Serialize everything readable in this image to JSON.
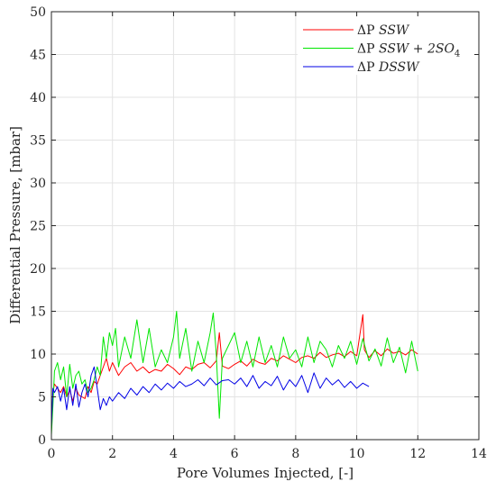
{
  "chart_data": {
    "type": "line",
    "xlabel": "Pore Volumes Injected, [-]",
    "ylabel": "Differential Pressure, [mbar]",
    "xlim": [
      0,
      14
    ],
    "ylim": [
      0,
      50
    ],
    "xticks": [
      0,
      2,
      4,
      6,
      8,
      10,
      12,
      14
    ],
    "yticks": [
      0,
      5,
      10,
      15,
      20,
      25,
      30,
      35,
      40,
      45,
      50
    ],
    "grid": true,
    "legend_position": "top-right",
    "series": [
      {
        "name": "ΔP SSW",
        "legend_prefix": "ΔP",
        "legend_label": "SSW",
        "color": "#ff0000",
        "x": [
          0.0,
          0.05,
          0.1,
          0.2,
          0.3,
          0.4,
          0.5,
          0.6,
          0.7,
          0.8,
          0.9,
          1.0,
          1.1,
          1.2,
          1.3,
          1.4,
          1.5,
          1.6,
          1.7,
          1.8,
          1.9,
          2.0,
          2.2,
          2.4,
          2.6,
          2.8,
          3.0,
          3.2,
          3.4,
          3.6,
          3.8,
          4.0,
          4.2,
          4.4,
          4.6,
          4.8,
          5.0,
          5.2,
          5.4,
          5.5,
          5.6,
          5.8,
          6.0,
          6.2,
          6.4,
          6.6,
          6.8,
          7.0,
          7.2,
          7.4,
          7.6,
          7.8,
          8.0,
          8.2,
          8.4,
          8.6,
          8.8,
          9.0,
          9.2,
          9.4,
          9.6,
          9.8,
          10.0,
          10.2,
          10.25,
          10.3,
          10.4,
          10.6,
          10.8,
          11.0,
          11.2,
          11.4,
          11.6,
          11.8,
          12.0
        ],
        "y": [
          1.0,
          5.5,
          6.5,
          6.0,
          5.5,
          6.2,
          5.0,
          5.8,
          4.5,
          6.0,
          5.2,
          5.0,
          4.8,
          6.2,
          5.5,
          6.8,
          6.5,
          7.5,
          8.5,
          9.5,
          8.0,
          9.0,
          7.5,
          8.5,
          9.0,
          8.0,
          8.5,
          7.8,
          8.2,
          8.0,
          8.8,
          8.3,
          7.6,
          8.5,
          8.2,
          8.8,
          9.0,
          8.4,
          9.2,
          12.5,
          8.6,
          8.3,
          8.8,
          9.2,
          8.6,
          9.4,
          9.0,
          8.8,
          9.5,
          9.2,
          9.8,
          9.4,
          9.0,
          9.6,
          9.8,
          9.5,
          10.2,
          9.6,
          9.9,
          10.1,
          9.7,
          10.3,
          9.8,
          14.6,
          10.5,
          10.2,
          9.6,
          10.4,
          9.8,
          10.6,
          10.1,
          10.3,
          9.9,
          10.5,
          10.0
        ]
      },
      {
        "name": "ΔP SSW + 2SO4",
        "legend_prefix": "ΔP",
        "legend_label": "SSW + 2SO",
        "legend_sub": "4",
        "color": "#00e600",
        "x": [
          0.0,
          0.05,
          0.1,
          0.2,
          0.3,
          0.4,
          0.5,
          0.6,
          0.7,
          0.8,
          0.9,
          1.0,
          1.1,
          1.2,
          1.3,
          1.4,
          1.5,
          1.6,
          1.7,
          1.8,
          1.9,
          2.0,
          2.1,
          2.2,
          2.4,
          2.6,
          2.8,
          3.0,
          3.2,
          3.4,
          3.6,
          3.8,
          4.0,
          4.1,
          4.2,
          4.4,
          4.6,
          4.8,
          5.0,
          5.2,
          5.3,
          5.4,
          5.5,
          5.6,
          5.8,
          6.0,
          6.2,
          6.4,
          6.6,
          6.8,
          7.0,
          7.2,
          7.4,
          7.6,
          7.8,
          8.0,
          8.2,
          8.4,
          8.6,
          8.8,
          9.0,
          9.2,
          9.4,
          9.6,
          9.8,
          10.0,
          10.2,
          10.4,
          10.6,
          10.8,
          11.0,
          11.2,
          11.4,
          11.6,
          11.8,
          12.0
        ],
        "y": [
          0.5,
          4.0,
          8.0,
          9.0,
          7.0,
          8.5,
          5.0,
          8.8,
          6.0,
          7.5,
          8.0,
          6.5,
          7.0,
          5.5,
          6.0,
          7.0,
          8.5,
          7.5,
          12.0,
          9.5,
          12.5,
          11.0,
          13.0,
          8.5,
          12.0,
          9.5,
          14.0,
          9.0,
          13.0,
          8.5,
          10.5,
          9.0,
          12.0,
          15.0,
          9.5,
          13.0,
          8.0,
          11.5,
          9.0,
          12.5,
          14.8,
          10.0,
          2.5,
          9.5,
          11.0,
          12.5,
          9.0,
          11.5,
          8.5,
          12.0,
          9.0,
          11.0,
          8.5,
          12.0,
          9.5,
          10.5,
          8.5,
          12.0,
          9.0,
          11.5,
          10.5,
          8.5,
          11.0,
          9.5,
          11.5,
          8.8,
          11.8,
          9.2,
          10.6,
          8.6,
          11.9,
          9.0,
          10.8,
          7.8,
          11.5,
          8.0
        ]
      },
      {
        "name": "ΔP DSSW",
        "legend_prefix": "ΔP",
        "legend_label": "DSSW",
        "color": "#0000e6",
        "x": [
          0.0,
          0.05,
          0.1,
          0.2,
          0.3,
          0.4,
          0.5,
          0.6,
          0.7,
          0.8,
          0.9,
          1.0,
          1.1,
          1.2,
          1.3,
          1.4,
          1.5,
          1.6,
          1.7,
          1.8,
          1.9,
          2.0,
          2.2,
          2.4,
          2.6,
          2.8,
          3.0,
          3.2,
          3.4,
          3.6,
          3.8,
          4.0,
          4.2,
          4.4,
          4.6,
          4.8,
          5.0,
          5.2,
          5.4,
          5.6,
          5.8,
          6.0,
          6.2,
          6.4,
          6.6,
          6.8,
          7.0,
          7.2,
          7.4,
          7.6,
          7.8,
          8.0,
          8.2,
          8.4,
          8.6,
          8.8,
          9.0,
          9.2,
          9.4,
          9.6,
          9.8,
          10.0,
          10.2,
          10.4
        ],
        "y": [
          1.5,
          6.0,
          5.5,
          6.2,
          4.5,
          6.0,
          3.5,
          6.2,
          4.0,
          6.5,
          3.8,
          5.5,
          6.5,
          5.0,
          7.5,
          8.5,
          6.0,
          3.5,
          4.8,
          4.0,
          5.0,
          4.5,
          5.5,
          4.8,
          6.0,
          5.2,
          6.2,
          5.5,
          6.5,
          5.8,
          6.6,
          6.0,
          6.8,
          6.2,
          6.5,
          7.0,
          6.3,
          7.2,
          6.4,
          6.9,
          7.0,
          6.5,
          7.2,
          6.2,
          7.5,
          6.0,
          6.8,
          6.3,
          7.4,
          5.8,
          7.0,
          6.2,
          7.5,
          5.5,
          7.8,
          6.0,
          7.2,
          6.4,
          7.0,
          6.1,
          6.8,
          6.0,
          6.6,
          6.2
        ]
      }
    ]
  }
}
